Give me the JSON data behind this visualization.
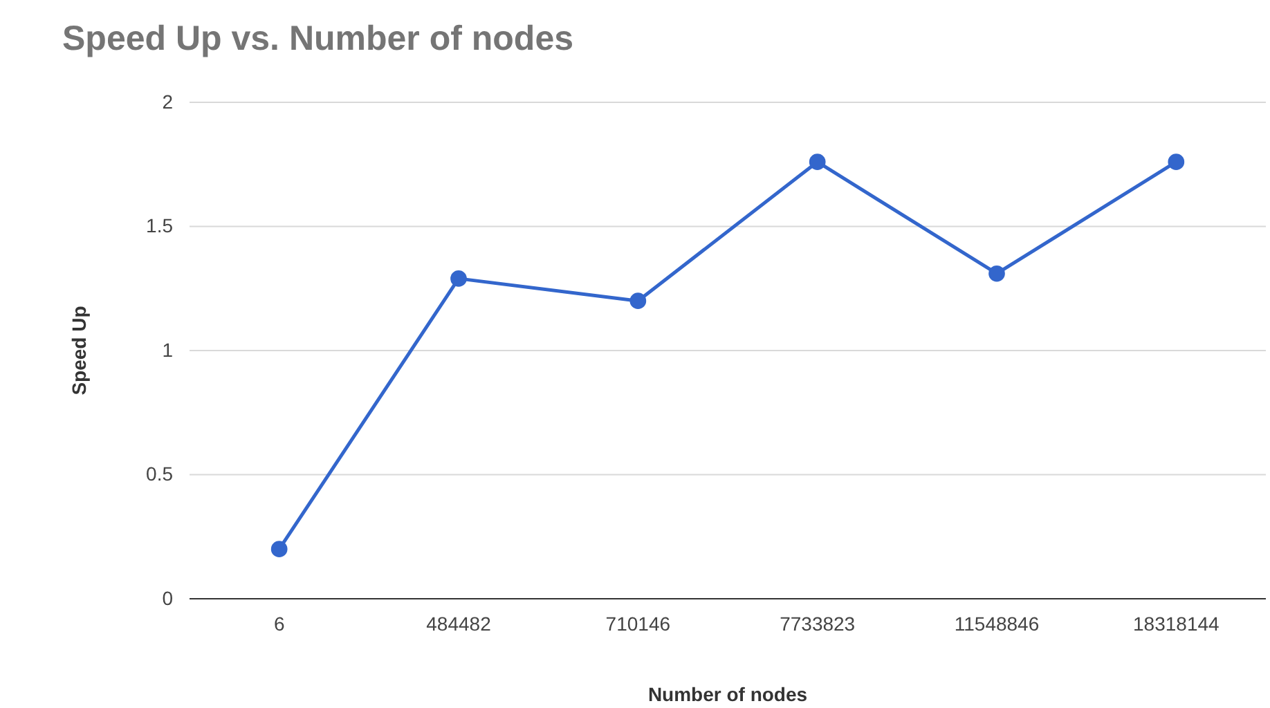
{
  "chart_data": {
    "type": "line",
    "title": "Speed Up vs. Number of nodes",
    "xlabel": "Number of nodes",
    "ylabel": "Speed Up",
    "categories": [
      "6",
      "484482",
      "710146",
      "7733823",
      "11548846",
      "18318144"
    ],
    "series": [
      {
        "color": "#3366cc",
        "values": [
          0.2,
          1.29,
          1.2,
          1.76,
          1.31,
          1.76
        ]
      }
    ],
    "ylim": [
      0,
      2
    ],
    "yticks": [
      0,
      0.5,
      1,
      1.5,
      2
    ],
    "grid": "y",
    "marker": "circle",
    "line_style": "solid"
  }
}
